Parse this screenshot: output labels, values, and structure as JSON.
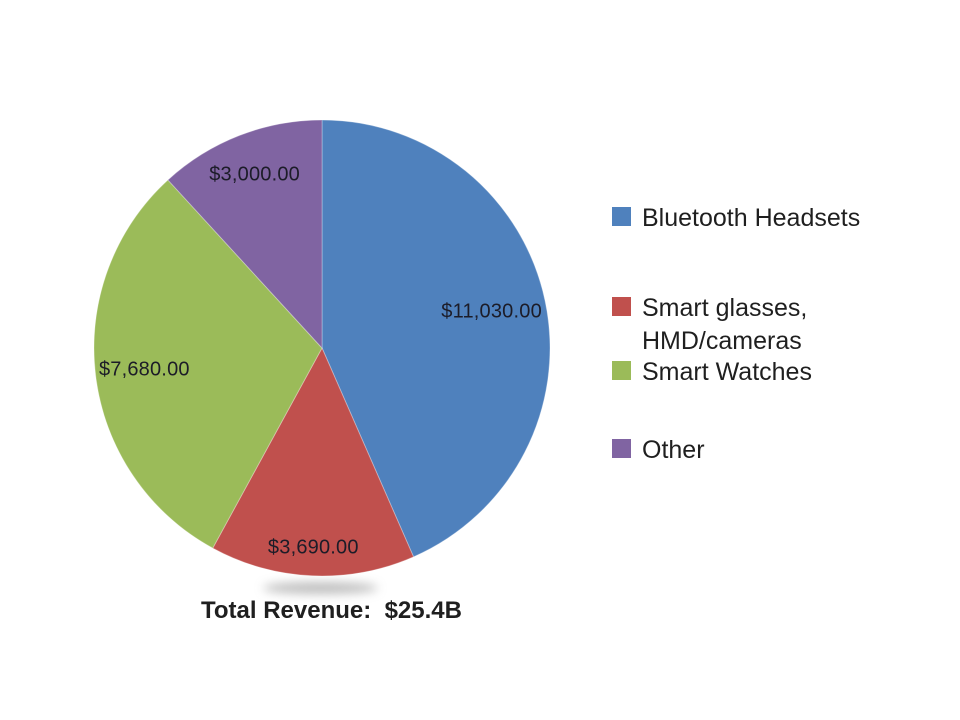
{
  "page": {
    "background_color": "#ffffff"
  },
  "chart_data": {
    "type": "pie",
    "title": "",
    "caption": "Total Revenue:  $25.4B",
    "total_value": 25400,
    "total_display": "$25.4B",
    "legend_position": "right",
    "start_angle_deg": 0,
    "direction": "clockwise",
    "data_label_style": "currency",
    "slices": [
      {
        "label": "Bluetooth Headsets",
        "value": 11030,
        "display_value": "$11,030.00",
        "color": "#4F81BD"
      },
      {
        "label": "Smart glasses, HMD/cameras",
        "value": 3690,
        "display_value": "$3,690.00",
        "color": "#C0504D"
      },
      {
        "label": "Smart Watches",
        "value": 7680,
        "display_value": "$7,680.00",
        "color": "#9BBB59"
      },
      {
        "label": "Other",
        "value": 3000,
        "display_value": "$3,000.00",
        "color": "#8064A2"
      }
    ]
  }
}
